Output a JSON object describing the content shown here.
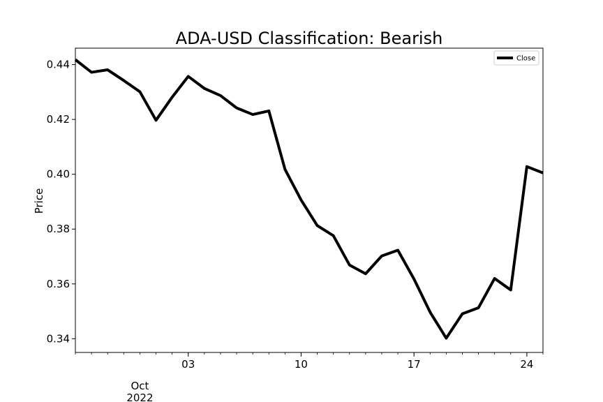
{
  "chart_data": {
    "type": "line",
    "title": "ADA-USD Classification: Bearish",
    "xlabel": "",
    "ylabel": "Price",
    "x": [
      "2022-09-26",
      "2022-09-27",
      "2022-09-28",
      "2022-09-29",
      "2022-09-30",
      "2022-10-01",
      "2022-10-02",
      "2022-10-03",
      "2022-10-04",
      "2022-10-05",
      "2022-10-06",
      "2022-10-07",
      "2022-10-08",
      "2022-10-09",
      "2022-10-10",
      "2022-10-11",
      "2022-10-12",
      "2022-10-13",
      "2022-10-14",
      "2022-10-15",
      "2022-10-16",
      "2022-10-17",
      "2022-10-18",
      "2022-10-19",
      "2022-10-20",
      "2022-10-21",
      "2022-10-22",
      "2022-10-23",
      "2022-10-24",
      "2022-10-25"
    ],
    "series": [
      {
        "name": "Close",
        "color": "#000000",
        "values": [
          0.4418,
          0.4372,
          0.4381,
          0.4342,
          0.4301,
          0.4197,
          0.4281,
          0.4357,
          0.4313,
          0.4287,
          0.4242,
          0.4218,
          0.4231,
          0.4018,
          0.3906,
          0.3813,
          0.3776,
          0.3669,
          0.3637,
          0.3702,
          0.3723,
          0.3618,
          0.3497,
          0.3402,
          0.3491,
          0.3513,
          0.362,
          0.3578,
          0.4028,
          0.4005
        ]
      }
    ],
    "ylim": [
      0.335,
      0.446
    ],
    "yticks": [
      "0.34",
      "0.36",
      "0.38",
      "0.40",
      "0.42",
      "0.44"
    ],
    "xticks": [
      {
        "date": "2022-10-03",
        "label": "03"
      },
      {
        "date": "2022-10-10",
        "label": "10"
      },
      {
        "date": "2022-10-17",
        "label": "17"
      },
      {
        "date": "2022-10-24",
        "label": "24"
      }
    ],
    "xtick_month_label": {
      "date": "2022-09-30",
      "line1": "Oct",
      "line2": "2022"
    },
    "legend_placement": "top-right",
    "grid": false
  }
}
